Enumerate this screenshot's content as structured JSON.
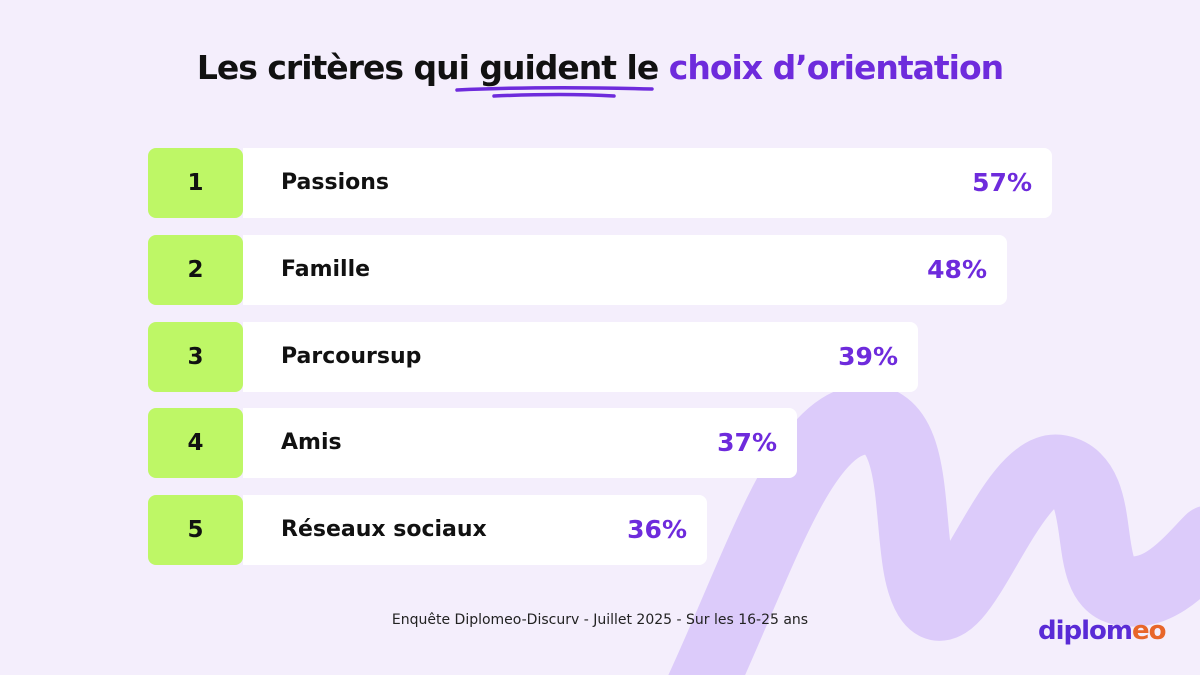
{
  "title": {
    "part1": "Les critères qui ",
    "underlined": "guident le",
    "space": " ",
    "accent": "choix d’orientation"
  },
  "chart_data": {
    "type": "bar",
    "orientation": "horizontal",
    "categories": [
      "Passions",
      "Famille",
      "Parcoursup",
      "Amis",
      "Réseaux sociaux"
    ],
    "ranks": [
      "1",
      "2",
      "3",
      "4",
      "5"
    ],
    "values": [
      57,
      48,
      39,
      37,
      36
    ],
    "value_labels": [
      "57%",
      "48%",
      "39%",
      "37%",
      "36%"
    ],
    "colors": {
      "rank_box": "#bef766",
      "bar": "#ffffff",
      "value": "#6e2bdc"
    }
  },
  "source": "Enquête Diplomeo-Discurv - Juillet 2025 - Sur les 16-25 ans",
  "logo": {
    "main": "diplom",
    "end": "eo"
  }
}
